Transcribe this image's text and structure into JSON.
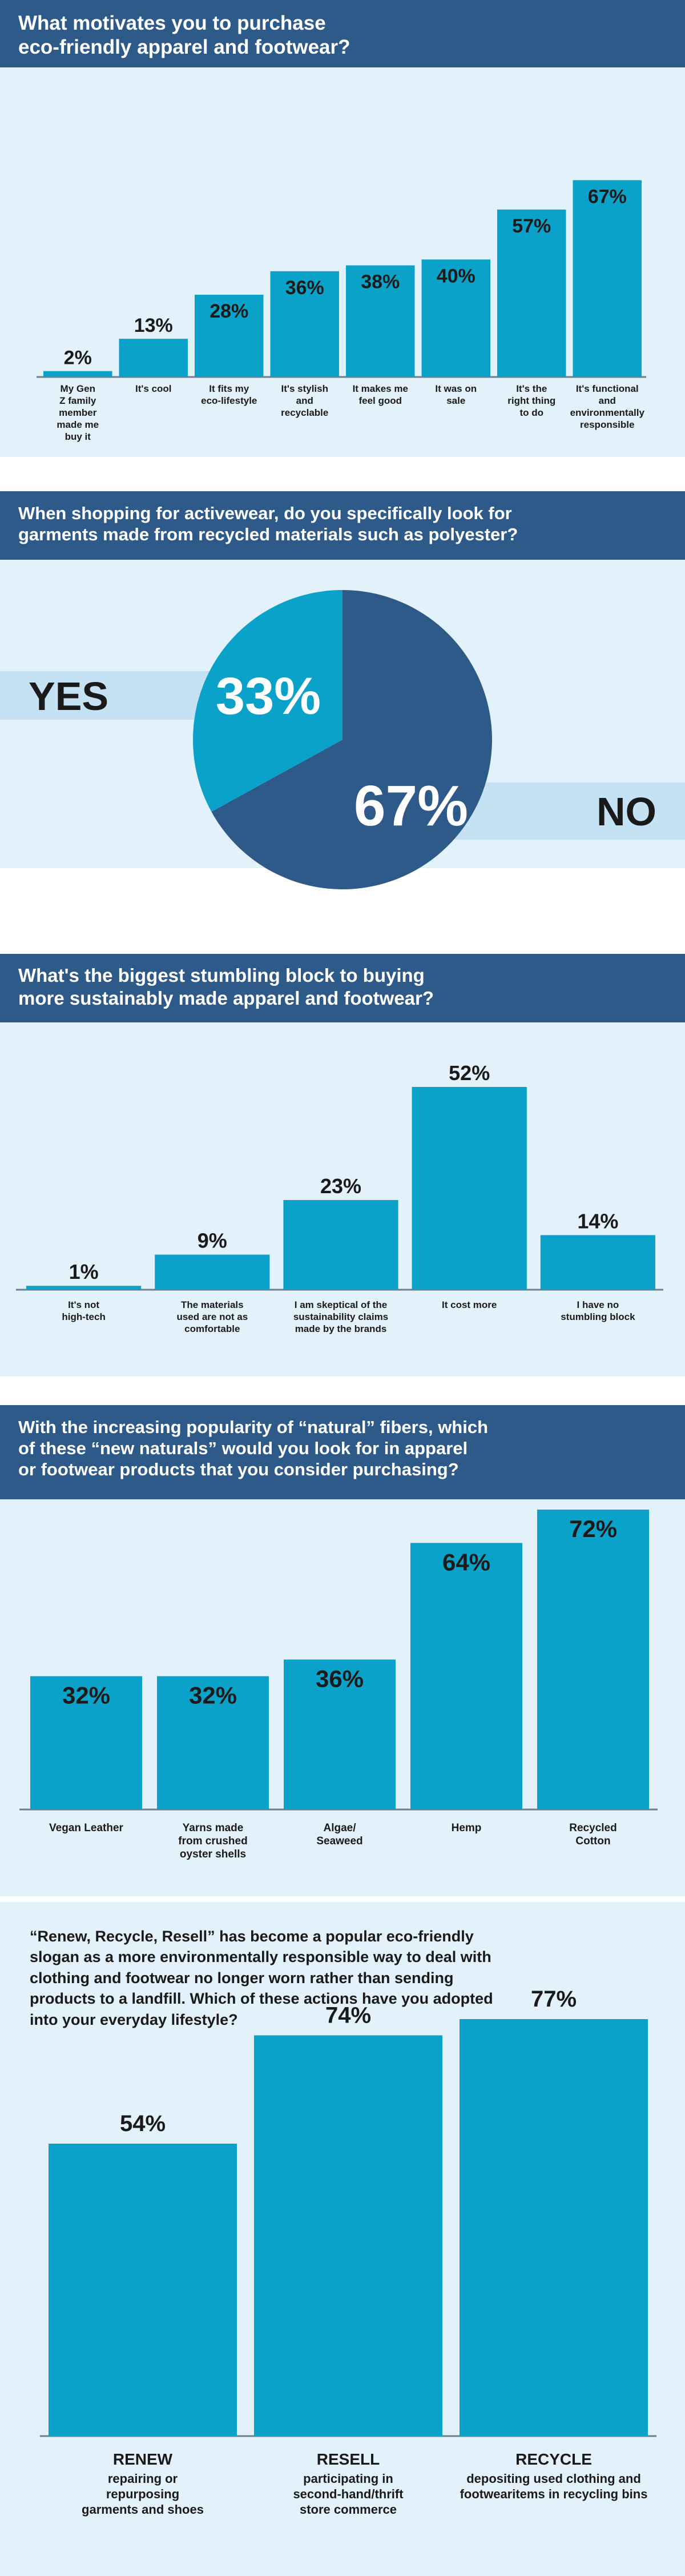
{
  "colors": {
    "banner": "#2e5a8a",
    "bar": "#0aa2c8",
    "light_bg": "#e3f1fa",
    "pie_dark": "#2e5a8a",
    "pie_light": "#0aa2c8",
    "yes_band": "#c5e2f5"
  },
  "chart_data": [
    {
      "type": "bar",
      "title": "What motivates you to purchase\neco-friendly apparel and footwear?",
      "categories": [
        "My Gen\nZ family\nmember\nmade me\nbuy it",
        "It's cool",
        "It fits my\neco-lifestyle",
        "It's stylish\nand\nrecyclable",
        "It makes me\nfeel good",
        "It was on\nsale",
        "It's the\nright thing\nto do",
        "It's functional\nand\nenvironmentally\nresponsible"
      ],
      "values": [
        2,
        13,
        28,
        36,
        38,
        40,
        57,
        67
      ],
      "value_labels": [
        "2%",
        "13%",
        "28%",
        "36%",
        "38%",
        "40%",
        "57%",
        "67%"
      ],
      "ylim": [
        0,
        70
      ]
    },
    {
      "type": "pie",
      "title": "When shopping for activewear, do you specifically look for\ngarments made from recycled materials such as polyester?",
      "slices": [
        {
          "name": "YES",
          "value": 33,
          "label": "33%"
        },
        {
          "name": "NO",
          "value": 67,
          "label": "67%"
        }
      ]
    },
    {
      "type": "bar",
      "title": "What's the biggest stumbling block to buying\nmore sustainably made apparel and footwear?",
      "categories": [
        "It's not\nhigh-tech",
        "The materials\nused are not as\ncomfortable",
        "I am skeptical of the\nsustainability claims\nmade by the brands",
        "It cost more",
        "I have no\nstumbling block"
      ],
      "values": [
        1,
        9,
        23,
        52,
        14
      ],
      "value_labels": [
        "1%",
        "9%",
        "23%",
        "52%",
        "14%"
      ],
      "ylim": [
        0,
        52
      ]
    },
    {
      "type": "bar",
      "title": "With the increasing popularity of “natural” fibers, which\nof these “new naturals” would you look for in apparel\nor footwear products that you consider purchasing?",
      "categories": [
        "Vegan Leather",
        "Yarns made\nfrom crushed\noyster shells",
        "Algae/\nSeaweed",
        "Hemp",
        "Recycled\nCotton"
      ],
      "values": [
        32,
        32,
        36,
        64,
        72
      ],
      "value_labels": [
        "32%",
        "32%",
        "36%",
        "64%",
        "72%"
      ],
      "ylim": [
        0,
        72
      ]
    },
    {
      "type": "bar",
      "title": "“Renew, Recycle, Resell” has become a popular eco-friendly\nslogan as a more environmentally responsible way to deal with\nclothing and footwear no longer worn rather than sending\nproducts to a landfill. Which of these actions have you adopted\ninto your everyday lifestyle?",
      "categories": [
        "RENEW",
        "RESELL",
        "RECYCLE"
      ],
      "descriptions": [
        "repairing or\nrepurposing\ngarments and shoes",
        "participating in\nsecond-hand/thrift\nstore commerce",
        "depositing used clothing and\nfootwearitems in recycling bins"
      ],
      "values": [
        54,
        74,
        77
      ],
      "value_labels": [
        "54%",
        "74%",
        "77%"
      ],
      "ylim": [
        0,
        77
      ]
    }
  ]
}
